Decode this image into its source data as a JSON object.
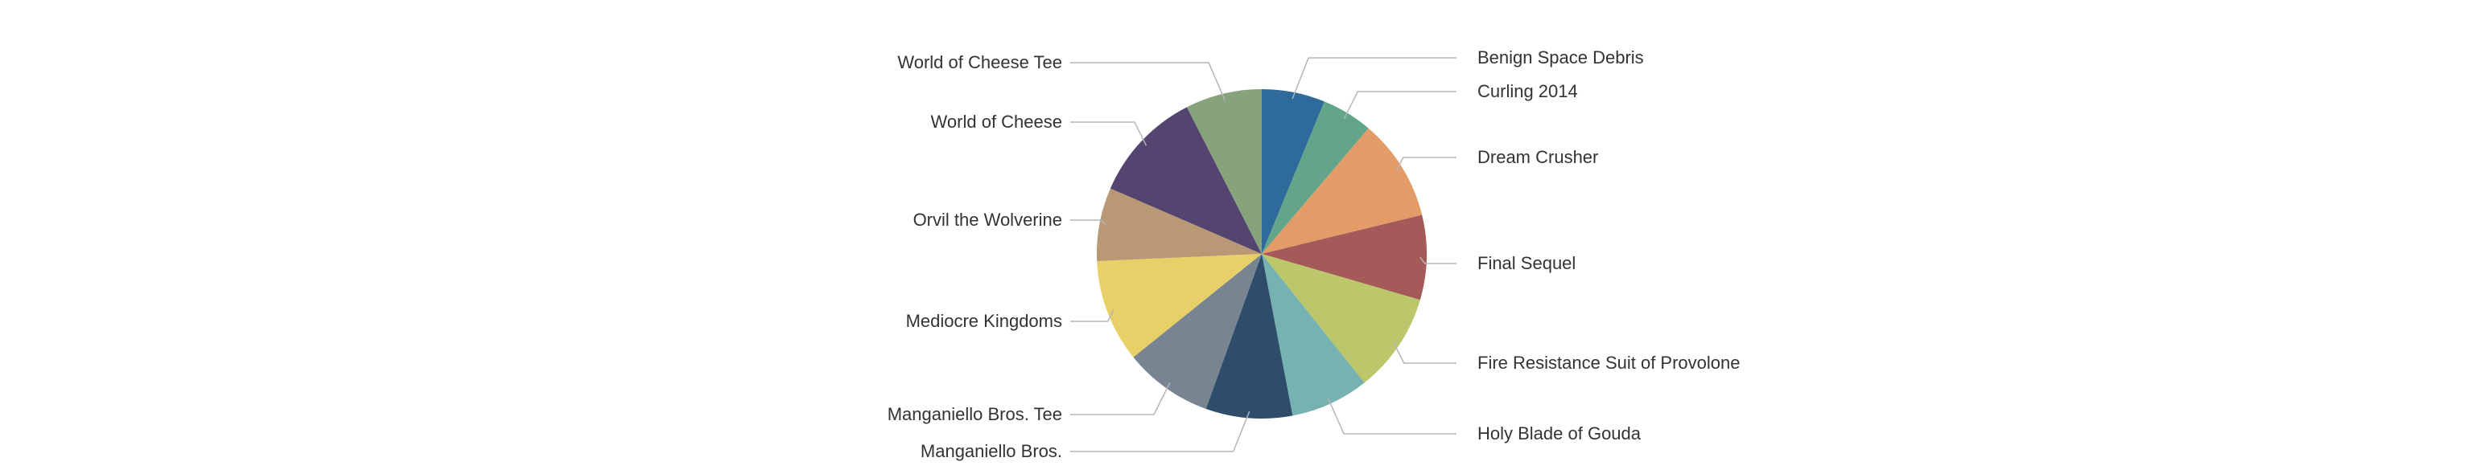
{
  "chart_data": {
    "type": "pie",
    "title": "",
    "start_angle": "12 o'clock",
    "direction": "clockwise",
    "slices": [
      {
        "label": "Benign Space Debris",
        "value": 6.2,
        "color": "#2e6b9a"
      },
      {
        "label": "Curling 2014",
        "value": 5.0,
        "color": "#62a58a"
      },
      {
        "label": "Dream Crusher",
        "value": 10.0,
        "color": "#e39c68"
      },
      {
        "label": "Final Sequel",
        "value": 8.3,
        "color": "#a55a5a"
      },
      {
        "label": "Fire Resistance Suit of Provolone",
        "value": 9.8,
        "color": "#bcc66a"
      },
      {
        "label": "Holy Blade of Gouda",
        "value": 7.7,
        "color": "#76b2b2"
      },
      {
        "label": "Manganiello Bros.",
        "value": 8.5,
        "color": "#2e4d6b"
      },
      {
        "label": "Manganiello Bros. Tee",
        "value": 8.7,
        "color": "#788591"
      },
      {
        "label": "Mediocre Kingdoms",
        "value": 10.1,
        "color": "#e8cf67"
      },
      {
        "label": "Orvil the Wolverine",
        "value": 7.2,
        "color": "#b99975"
      },
      {
        "label": "World of Cheese",
        "value": 11.0,
        "color": "#544470"
      },
      {
        "label": "World of Cheese Tee",
        "value": 7.5,
        "color": "#87a37c"
      }
    ]
  }
}
